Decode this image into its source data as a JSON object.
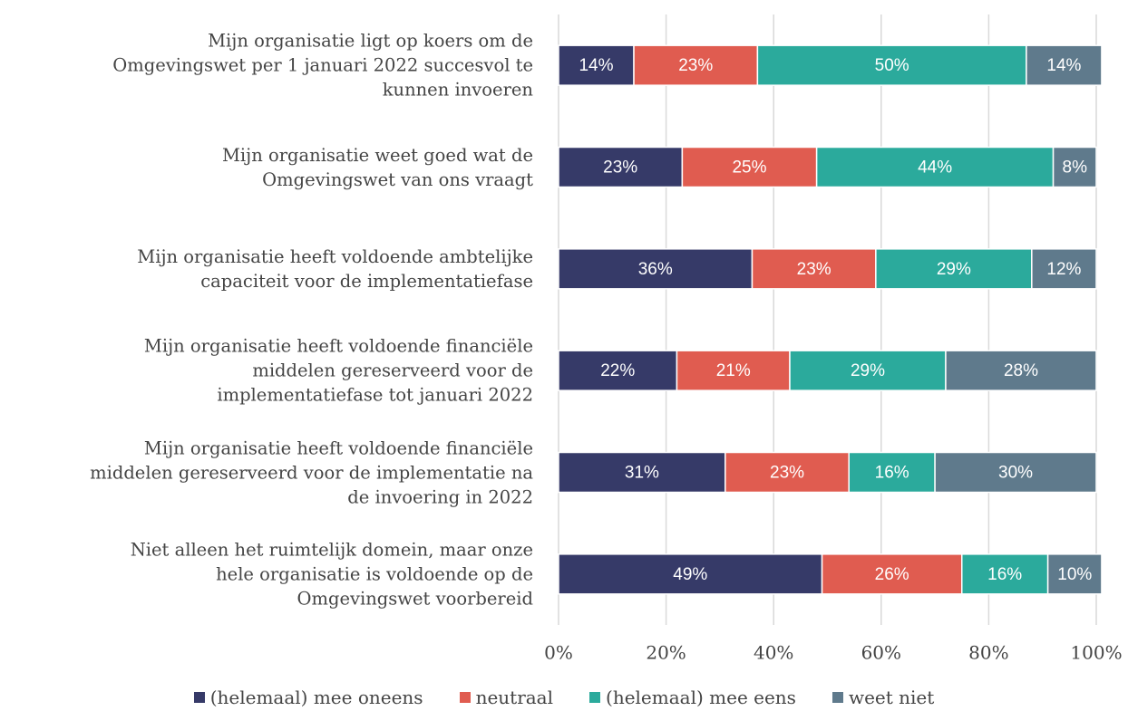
{
  "chart_data": {
    "type": "stacked_barh",
    "categories": [
      "Mijn organisatie ligt op koers om de\nOmgevingswet per 1 januari 2022 succesvol te\nkunnen invoeren",
      "Mijn organisatie weet goed wat de\nOmgevingswet van ons vraagt",
      "Mijn organisatie heeft voldoende ambtelijke\ncapaciteit voor de implementatiefase",
      "Mijn organisatie heeft voldoende financiële\nmiddelen gereserveerd voor de\nimplementatiefase tot januari 2022",
      "Mijn organisatie heeft voldoende financiële\nmiddelen gereserveerd voor de implementatie na\nde invoering in 2022",
      "Niet alleen het ruimtelijk domein, maar onze\nhele organisatie is voldoende op de\nOmgevingswet voorbereid"
    ],
    "series": [
      {
        "name": "(helemaal) mee oneens",
        "color": "#363a68",
        "values": [
          14,
          23,
          36,
          22,
          31,
          49
        ],
        "value_labels": [
          "14%",
          "23%",
          "36%",
          "22%",
          "31%",
          "49%"
        ]
      },
      {
        "name": "neutraal",
        "color": "#e05c50",
        "values": [
          23,
          25,
          23,
          21,
          23,
          26
        ],
        "value_labels": [
          "23%",
          "25%",
          "23%",
          "21%",
          "23%",
          "26%"
        ]
      },
      {
        "name": "(helemaal) mee eens",
        "color": "#2baa9c",
        "values": [
          50,
          44,
          29,
          29,
          16,
          16
        ],
        "value_labels": [
          "50%",
          "44%",
          "29%",
          "29%",
          "16%",
          "16%"
        ]
      },
      {
        "name": "weet niet",
        "color": "#5f7a8c",
        "values": [
          14,
          8,
          12,
          28,
          30,
          10
        ],
        "value_labels": [
          "14%",
          "8%",
          "12%",
          "28%",
          "30%",
          "10%"
        ]
      }
    ],
    "xlim": [
      0,
      100
    ],
    "xticks": [
      {
        "value": 0,
        "label": "0%"
      },
      {
        "value": 20,
        "label": "20%"
      },
      {
        "value": 40,
        "label": "40%"
      },
      {
        "value": 60,
        "label": "60%"
      },
      {
        "value": 80,
        "label": "80%"
      },
      {
        "value": 100,
        "label": "100%"
      }
    ],
    "grid": true,
    "legend": "bottom"
  }
}
